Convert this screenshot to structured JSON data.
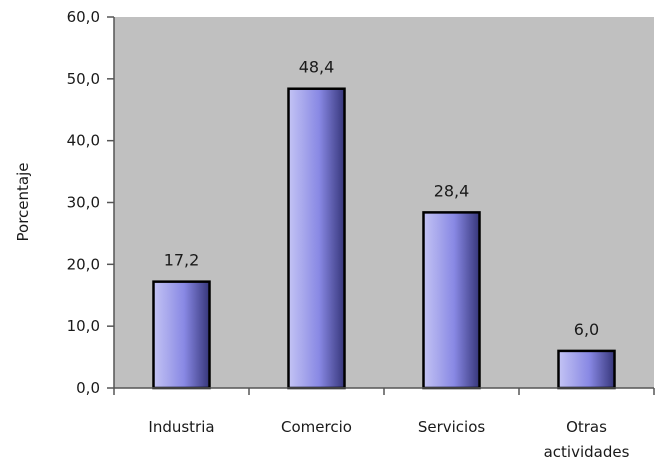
{
  "chart_data": {
    "type": "bar",
    "title": "",
    "xlabel": "",
    "ylabel": "Porcentaje",
    "categories": [
      "Industria",
      "Comercio",
      "Servicios",
      "Otras actividades"
    ],
    "category_lines": [
      [
        "Industria"
      ],
      [
        "Comercio"
      ],
      [
        "Servicios"
      ],
      [
        "Otras",
        "actividades"
      ]
    ],
    "values": [
      17.2,
      48.4,
      28.4,
      6.0
    ],
    "data_labels": [
      "17,2",
      "48,4",
      "28,4",
      "6,0"
    ],
    "ylim": [
      0,
      60
    ],
    "yticks": [
      0,
      10,
      20,
      30,
      40,
      50,
      60
    ],
    "ytick_labels": [
      "0,0",
      "10,0",
      "20,0",
      "30,0",
      "40,0",
      "50,0",
      "60,0"
    ],
    "grid": false,
    "legend": "none",
    "colors": {
      "plot_background": "#c0c0c0",
      "bar_light": "#c4c4f4",
      "bar_mid": "#8888e4",
      "bar_dark": "#36367a",
      "bar_outline": "#000000",
      "axis": "#555555"
    }
  }
}
